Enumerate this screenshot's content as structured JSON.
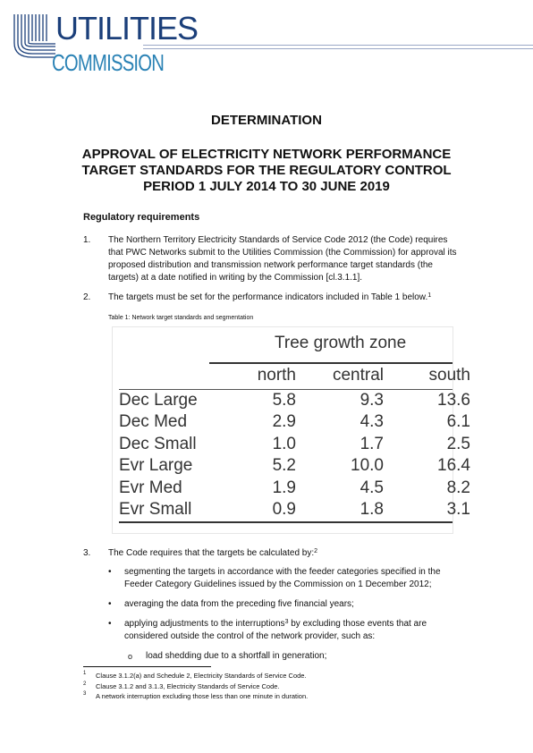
{
  "header": {
    "logo_line1": "UTILITIES",
    "logo_line2": "COMMISSION"
  },
  "document": {
    "heading": "DETERMINATION",
    "title_lines": [
      "APPROVAL OF ELECTRICITY NETWORK PERFORMANCE",
      "TARGET STANDARDS FOR THE REGULATORY CONTROL",
      "PERIOD 1 JULY 2014 TO 30 JUNE 2019"
    ],
    "section_heading": "Regulatory requirements",
    "paragraphs": [
      {
        "num": "1.",
        "lines": [
          "The Northern Territory Electricity Standards of Service Code 2012 (the Code) requires",
          "that PWC Networks submit to the Utilities Commission (the Commission) for approval its",
          "proposed distribution and transmission network performance target standards (the",
          "targets) at a date notified in writing by the Commission [cl.3.1.1]."
        ]
      },
      {
        "num": "2.",
        "text": "The targets must be set for the performance indicators included in Table 1 below.",
        "footnote_ref": "1"
      },
      {
        "num": "3.",
        "text": "The Code requires that the targets be calculated by:",
        "footnote_ref": "2"
      }
    ],
    "table_caption": "Table 1: Network target standards and segmentation",
    "bullets": [
      {
        "lines": [
          "segmenting the targets in accordance with the feeder categories specified in the",
          "Feeder Category Guidelines issued by the Commission on 1 December 2012;"
        ]
      },
      {
        "lines": [
          "averaging the data from the preceding five financial years;"
        ]
      },
      {
        "line1_pre": "applying adjustments to the interruptions",
        "line1_ref": "3",
        "line1_post": " by excluding those events that are",
        "line2": "considered outside the control of the network provider, such as:"
      }
    ],
    "sub_bullet_marker": "o",
    "sub_bullet": "load shedding due to a shortfall in generation;",
    "bullet_marker": "•"
  },
  "chart_data": {
    "type": "table",
    "title": "Tree growth zone",
    "columns": [
      "north",
      "central",
      "south"
    ],
    "rows": [
      {
        "label": "Dec Large",
        "values": [
          "5.8",
          "9.3",
          "13.6"
        ]
      },
      {
        "label": "Dec Med",
        "values": [
          "2.9",
          "4.3",
          "6.1"
        ]
      },
      {
        "label": "Dec Small",
        "values": [
          "1.0",
          "1.7",
          "2.5"
        ]
      },
      {
        "label": "Evr Large",
        "values": [
          "5.2",
          "10.0",
          "16.4"
        ]
      },
      {
        "label": "Evr Med",
        "values": [
          "1.9",
          "4.5",
          "8.2"
        ]
      },
      {
        "label": "Evr Small",
        "values": [
          "0.9",
          "1.8",
          "3.1"
        ]
      }
    ]
  },
  "footnotes": [
    {
      "num": "1",
      "text": "Clause 3.1.2(a) and Schedule 2, Electricity Standards of Service Code."
    },
    {
      "num": "2",
      "text": "Clause 3.1.2 and 3.1.3, Electricity Standards of Service Code."
    },
    {
      "num": "3",
      "text": "A network interruption excluding those less than one minute in duration."
    }
  ]
}
